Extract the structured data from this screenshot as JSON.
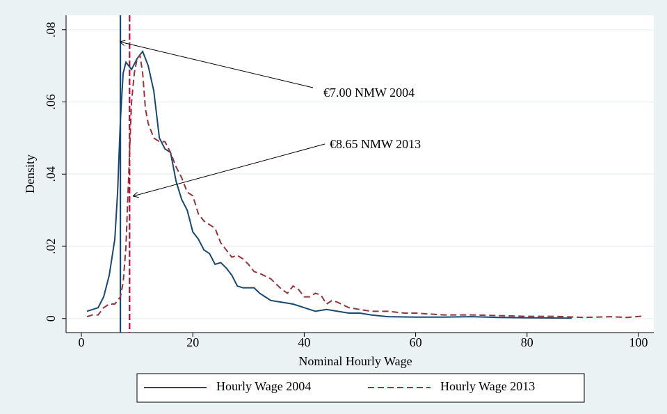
{
  "chart_data": {
    "type": "line",
    "x_label": "Nominal Hourly Wage",
    "y_label": "Density",
    "xlim": [
      -2.75,
      102.75
    ],
    "ylim": [
      -0.0039,
      0.084
    ],
    "xticks": [
      0,
      20,
      40,
      60,
      80,
      100
    ],
    "yticks": [
      0,
      {
        "value": 0.02,
        "label": ".02"
      },
      {
        "value": 0.04,
        "label": ".04"
      },
      {
        "value": 0.06,
        "label": ".06"
      },
      {
        "value": 0.08,
        "label": ".08"
      }
    ],
    "grid": true,
    "legend": "bottom",
    "series": [
      {
        "name": "Hourly Wage 2004",
        "color": "#1a476f",
        "style": "solid",
        "x": [
          1,
          2,
          3,
          4,
          5,
          6,
          6.5,
          7,
          7.5,
          8,
          9,
          10,
          11,
          12,
          13,
          14,
          15,
          16,
          17,
          18,
          19,
          20,
          21,
          22,
          23,
          24,
          25,
          26,
          27,
          28,
          29,
          30,
          31,
          32,
          33,
          34,
          36,
          38,
          40,
          42,
          44,
          46,
          48,
          50,
          52,
          55,
          60,
          65,
          70,
          75,
          80,
          88
        ],
        "values": [
          0.002,
          0.0025,
          0.003,
          0.006,
          0.012,
          0.022,
          0.035,
          0.055,
          0.068,
          0.071,
          0.069,
          0.072,
          0.074,
          0.07,
          0.063,
          0.05,
          0.047,
          0.046,
          0.038,
          0.033,
          0.03,
          0.024,
          0.022,
          0.019,
          0.018,
          0.015,
          0.0155,
          0.014,
          0.012,
          0.009,
          0.0085,
          0.0085,
          0.0085,
          0.007,
          0.006,
          0.005,
          0.0045,
          0.004,
          0.003,
          0.002,
          0.0025,
          0.002,
          0.0015,
          0.0015,
          0.001,
          0.0005,
          0.0004,
          0.0004,
          0.0005,
          0.0003,
          0.0002,
          0.0001
        ]
      },
      {
        "name": "Hourly Wage 2013",
        "color": "#90353b",
        "style": "dashed",
        "x": [
          1,
          2,
          3,
          4,
          5,
          6,
          7,
          7.5,
          8,
          8.5,
          9,
          9.5,
          10,
          10.5,
          11,
          11.5,
          12,
          13,
          14,
          15,
          16,
          17,
          18,
          19,
          20,
          21,
          22,
          23,
          24,
          25,
          26,
          27,
          28,
          29,
          30,
          31,
          32,
          34,
          35,
          36,
          37,
          38,
          39,
          40,
          41,
          42,
          43,
          44,
          45,
          46,
          48,
          50,
          52,
          55,
          58,
          60,
          65,
          70,
          75,
          80,
          85,
          90,
          95,
          98,
          101
        ],
        "values": [
          0.0005,
          0.001,
          0.001,
          0.003,
          0.004,
          0.004,
          0.006,
          0.01,
          0.02,
          0.04,
          0.06,
          0.068,
          0.072,
          0.073,
          0.068,
          0.058,
          0.054,
          0.05,
          0.049,
          0.049,
          0.046,
          0.042,
          0.039,
          0.035,
          0.034,
          0.029,
          0.027,
          0.026,
          0.025,
          0.021,
          0.019,
          0.017,
          0.0175,
          0.0165,
          0.015,
          0.013,
          0.0125,
          0.011,
          0.0095,
          0.008,
          0.007,
          0.009,
          0.008,
          0.006,
          0.006,
          0.007,
          0.0065,
          0.004,
          0.005,
          0.0045,
          0.003,
          0.0025,
          0.002,
          0.002,
          0.0015,
          0.0015,
          0.001,
          0.001,
          0.0008,
          0.0006,
          0.0006,
          0.0003,
          0.0005,
          0.0003,
          0.0007
        ]
      }
    ],
    "reference_lines": [
      {
        "x": 7,
        "color": "#1a476f",
        "style": "solid"
      },
      {
        "x": 8.65,
        "color": "#c10534",
        "style": "dashed"
      }
    ],
    "annotations": [
      {
        "text": "€7.00 NMW 2004"
      },
      {
        "text": "€8.65 NMW 2013"
      }
    ]
  }
}
